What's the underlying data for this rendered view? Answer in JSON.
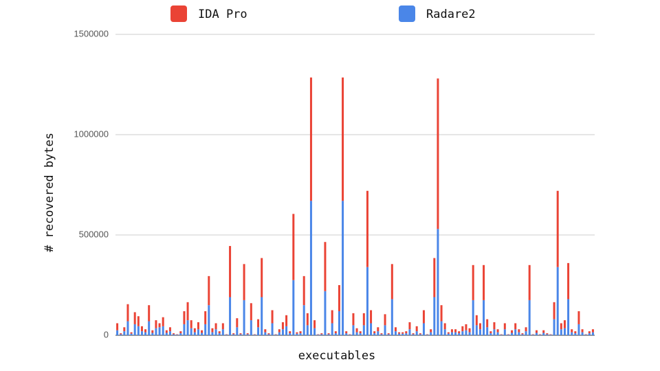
{
  "chart_data": {
    "type": "stacked_bar",
    "x_label": "executables",
    "y_label": "# recovered bytes",
    "legend": "top",
    "grid": true,
    "ylim": [
      0,
      1500000
    ],
    "yticks": [
      0,
      500000,
      1000000,
      1500000
    ],
    "categories": [
      null,
      null,
      null,
      null,
      null,
      null,
      null,
      null,
      null,
      null,
      null,
      null,
      null,
      null,
      null,
      null,
      null,
      null,
      null,
      null,
      null,
      null,
      null,
      null,
      null,
      null,
      null,
      null,
      null,
      null,
      null,
      null,
      null,
      null,
      null,
      null,
      null,
      null,
      null,
      null,
      null,
      null,
      null,
      null,
      null,
      null,
      null,
      null,
      null,
      null,
      null,
      null,
      null,
      null,
      null,
      null,
      null,
      null,
      null,
      null,
      null,
      null,
      null,
      null,
      null,
      null,
      null,
      null,
      null,
      null,
      null,
      null,
      null,
      null,
      null,
      null,
      null,
      null,
      null,
      null,
      null,
      null,
      null,
      null,
      null,
      null,
      null,
      null,
      null,
      null,
      null,
      null,
      null,
      null,
      null,
      null,
      null,
      null,
      null,
      null,
      null,
      null,
      null,
      null,
      null,
      null,
      null,
      null,
      null,
      null,
      null,
      null,
      null,
      null,
      null,
      null,
      null,
      null,
      null,
      null,
      null,
      null,
      null,
      null,
      null,
      null,
      null,
      null,
      null,
      null,
      null,
      null,
      null,
      null,
      null,
      null
    ],
    "series": [
      {
        "name": "IDA Pro",
        "color": "#ea4335",
        "values": [
          35000,
          5000,
          20000,
          85000,
          7000,
          60000,
          50000,
          25000,
          15000,
          80000,
          13000,
          40000,
          20000,
          45000,
          13000,
          20000,
          5000,
          2000,
          10000,
          65000,
          90000,
          40000,
          20000,
          35000,
          13000,
          65000,
          145000,
          20000,
          30000,
          10000,
          30000,
          2000,
          255000,
          5000,
          45000,
          5000,
          180000,
          5000,
          85000,
          2000,
          40000,
          195000,
          15000,
          5000,
          65000,
          2000,
          15000,
          35000,
          55000,
          10000,
          330000,
          7000,
          10000,
          145000,
          60000,
          615000,
          40000,
          2000,
          5000,
          245000,
          5000,
          65000,
          10000,
          130000,
          615000,
          10000,
          2000,
          60000,
          20000,
          10000,
          60000,
          380000,
          65000,
          10000,
          20000,
          5000,
          55000,
          5000,
          175000,
          20000,
          7000,
          7000,
          10000,
          35000,
          5000,
          25000,
          5000,
          65000,
          2000,
          15000,
          195000,
          750000,
          80000,
          30000,
          7000,
          15000,
          15000,
          10000,
          25000,
          30000,
          20000,
          175000,
          50000,
          30000,
          175000,
          40000,
          10000,
          35000,
          15000,
          2000,
          30000,
          2000,
          13000,
          30000,
          15000,
          5000,
          20000,
          175000,
          2000,
          13000,
          2000,
          13000,
          5000,
          2000,
          85000,
          380000,
          30000,
          40000,
          180000,
          15000,
          10000,
          65000,
          15000,
          2000,
          10000,
          15000
        ]
      },
      {
        "name": "Radare2",
        "color": "#4a86e8",
        "values": [
          25000,
          5000,
          20000,
          70000,
          8000,
          55000,
          45000,
          20000,
          15000,
          70000,
          12000,
          35000,
          40000,
          45000,
          12000,
          20000,
          5000,
          3000,
          10000,
          55000,
          75000,
          35000,
          15000,
          30000,
          12000,
          55000,
          150000,
          15000,
          30000,
          10000,
          30000,
          3000,
          190000,
          5000,
          40000,
          5000,
          175000,
          5000,
          75000,
          3000,
          40000,
          190000,
          15000,
          5000,
          60000,
          3000,
          15000,
          30000,
          45000,
          10000,
          275000,
          8000,
          10000,
          150000,
          50000,
          670000,
          35000,
          3000,
          5000,
          220000,
          5000,
          60000,
          10000,
          120000,
          670000,
          10000,
          3000,
          50000,
          15000,
          10000,
          50000,
          340000,
          60000,
          10000,
          20000,
          5000,
          50000,
          5000,
          180000,
          20000,
          8000,
          8000,
          10000,
          30000,
          5000,
          20000,
          5000,
          60000,
          3000,
          15000,
          190000,
          530000,
          70000,
          30000,
          8000,
          15000,
          15000,
          10000,
          20000,
          25000,
          15000,
          175000,
          50000,
          30000,
          175000,
          40000,
          10000,
          30000,
          15000,
          3000,
          30000,
          3000,
          12000,
          30000,
          15000,
          5000,
          20000,
          175000,
          3000,
          12000,
          3000,
          12000,
          5000,
          3000,
          80000,
          340000,
          30000,
          35000,
          180000,
          15000,
          10000,
          55000,
          15000,
          3000,
          10000,
          15000
        ]
      }
    ]
  }
}
